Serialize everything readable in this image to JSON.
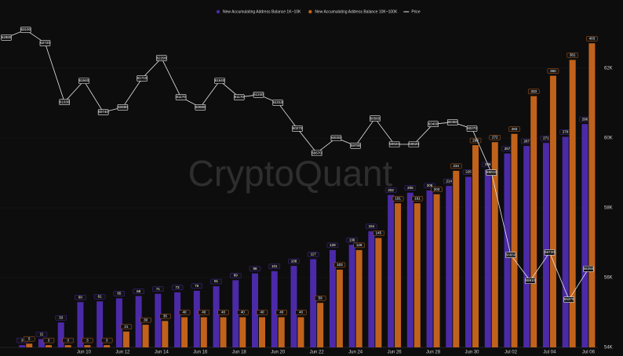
{
  "chart_data": {
    "type": "bar-line",
    "watermark": "CryptoQuant",
    "categories": [
      null,
      null,
      null,
      null,
      "Jun 10",
      null,
      "Jun 12",
      null,
      "Jun 14",
      null,
      "Jun 16",
      null,
      "Jun 18",
      null,
      "Jun 20",
      null,
      "Jun 22",
      null,
      "Jun 24",
      null,
      "Jun 26",
      null,
      "Jun 28",
      null,
      "Jun 30",
      null,
      "Jul 02",
      null,
      "Jul 04",
      null,
      "Jul 06"
    ],
    "ylim": [
      0,
      450
    ],
    "y2lim": [
      54000,
      63730
    ],
    "y2ticks": [
      {
        "value": 54000,
        "label": "54K"
      },
      {
        "value": 56000,
        "label": "56K"
      },
      {
        "value": 58000,
        "label": "58K"
      },
      {
        "value": 60000,
        "label": "60K"
      },
      {
        "value": 62000,
        "label": "62K"
      }
    ],
    "series": [
      {
        "name": "New Accumulating Address Balance 1K~10K",
        "color": "#4b2aa8",
        "values": [
          0,
          3,
          11,
          33,
          60,
          61,
          65,
          68,
          71,
          73,
          75,
          81,
          89,
          98,
          101,
          108,
          117,
          129,
          136,
          154,
          202,
          205,
          208,
          214,
          226,
          236,
          257,
          267,
          271,
          279,
          296
        ]
      },
      {
        "name": "New Accumulating Address Balance 10K~100K",
        "color": "#c0621c",
        "values": [
          0,
          5,
          3,
          3,
          3,
          3,
          21,
          30,
          35,
          40,
          40,
          40,
          40,
          40,
          40,
          40,
          59,
          103,
          129,
          145,
          191,
          191,
          203,
          234,
          268,
          272,
          283,
          333,
          360,
          381,
          403
        ]
      },
      {
        "name": "Price",
        "color": "#e6e6e6",
        "axis": "y2",
        "values": [
          62880,
          63100,
          62720,
          61030,
          61640,
          60740,
          60880,
          61710,
          62290,
          61170,
          60880,
          61640,
          61170,
          61240,
          61010,
          60270,
          59570,
          60000,
          59780,
          60560,
          59820,
          59820,
          60400,
          60450,
          60270,
          59010,
          56650,
          55910,
          56720,
          55370,
          56250
        ]
      }
    ]
  }
}
